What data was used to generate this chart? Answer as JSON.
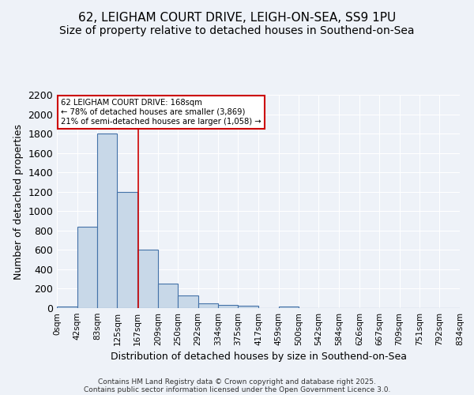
{
  "title1": "62, LEIGHAM COURT DRIVE, LEIGH-ON-SEA, SS9 1PU",
  "title2": "Size of property relative to detached houses in Southend-on-Sea",
  "xlabel": "Distribution of detached houses by size in Southend-on-Sea",
  "ylabel": "Number of detached properties",
  "bin_edges": [
    0,
    42,
    83,
    125,
    167,
    209,
    250,
    292,
    334,
    375,
    417,
    459,
    500,
    542,
    584,
    626,
    667,
    709,
    751,
    792,
    834
  ],
  "bar_heights": [
    20,
    840,
    1800,
    1200,
    600,
    255,
    130,
    45,
    35,
    25,
    0,
    15,
    0,
    0,
    0,
    0,
    0,
    0,
    0,
    0
  ],
  "bar_color": "#c8d8e8",
  "bar_edgecolor": "#4472a8",
  "vline_x": 168,
  "vline_color": "#cc0000",
  "annotation_text": "62 LEIGHAM COURT DRIVE: 168sqm\n← 78% of detached houses are smaller (3,869)\n21% of semi-detached houses are larger (1,058) →",
  "annotation_box_color": "#cc0000",
  "annotation_text_color": "#000000",
  "ylim": [
    0,
    2200
  ],
  "yticks": [
    0,
    200,
    400,
    600,
    800,
    1000,
    1200,
    1400,
    1600,
    1800,
    2000,
    2200
  ],
  "background_color": "#eef2f8",
  "grid_color": "#ffffff",
  "footnote1": "Contains HM Land Registry data © Crown copyright and database right 2025.",
  "footnote2": "Contains public sector information licensed under the Open Government Licence 3.0.",
  "title_fontsize": 11,
  "subtitle_fontsize": 10,
  "tick_label_fontsize": 7.5,
  "axis_label_fontsize": 9
}
